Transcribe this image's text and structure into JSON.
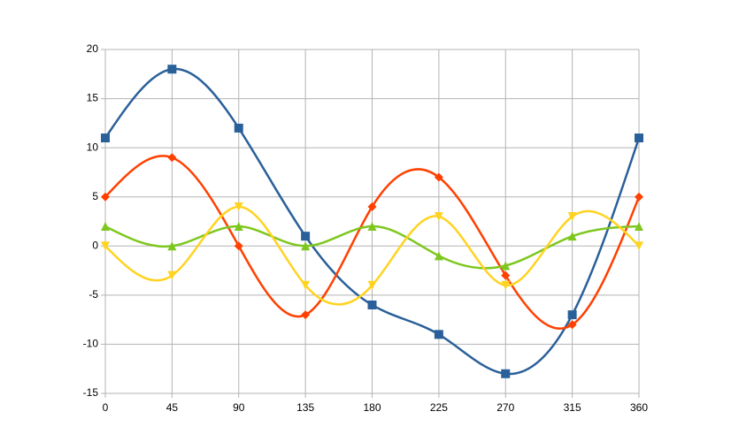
{
  "chart_data": {
    "type": "line",
    "smooth": true,
    "grid": true,
    "x": [
      0,
      45,
      90,
      135,
      180,
      225,
      270,
      315,
      360
    ],
    "xlim": [
      0,
      360
    ],
    "xticks": [
      0,
      45,
      90,
      135,
      180,
      225,
      270,
      315,
      360
    ],
    "ylim": [
      -15,
      20
    ],
    "yticks": [
      -15,
      -10,
      -5,
      0,
      5,
      10,
      15,
      20
    ],
    "series": [
      {
        "color": "#2a6099",
        "marker": "square",
        "values": [
          11,
          18,
          12,
          1,
          -6,
          -9,
          -13,
          -7,
          11
        ]
      },
      {
        "color": "#ff4000",
        "marker": "diamond",
        "values": [
          5,
          9,
          0,
          -7,
          4,
          7,
          -3,
          -8,
          5
        ]
      },
      {
        "color": "#7ec71f",
        "marker": "triangle-up",
        "values": [
          2,
          0,
          2,
          0,
          2,
          -1,
          -2,
          1,
          2
        ]
      },
      {
        "color": "#ffd320",
        "marker": "triangle-down",
        "values": [
          0,
          -3,
          4,
          -4,
          -4,
          3,
          -4,
          3,
          0
        ]
      }
    ]
  }
}
